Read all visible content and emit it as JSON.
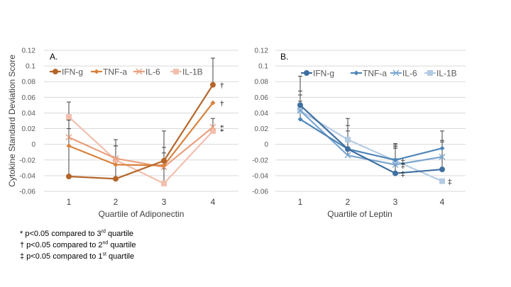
{
  "chart_data": [
    {
      "type": "line",
      "panel_label": "A.",
      "title": "",
      "xlabel": "Quartile of Adiponectin",
      "ylabel": "Cytokine Standard Deviation Score",
      "categories": [
        "1",
        "2",
        "3",
        "4"
      ],
      "ylim": [
        -0.06,
        0.12
      ],
      "yticks": [
        "0.12",
        "0.1",
        "0.08",
        "0.06",
        "0.04",
        "0.02",
        "0",
        "-0.02",
        "-0.04",
        "-0.06"
      ],
      "grid": true,
      "legend_position": "top",
      "series": [
        {
          "name": "IFN-g",
          "color": "#b5652a",
          "marker": "circle",
          "values": [
            -0.041,
            -0.044,
            -0.021,
            0.076
          ],
          "error_upper": [
            0.031,
            0.006,
            0.017,
            0.11
          ]
        },
        {
          "name": "TNF-a",
          "color": "#d9823e",
          "marker": "diamond",
          "values": [
            -0.002,
            -0.026,
            -0.027,
            0.053
          ],
          "error_upper": [
            0.02,
            -0.002,
            -0.004,
            null
          ]
        },
        {
          "name": "IL-6",
          "color": "#e9a07e",
          "marker": "x",
          "values": [
            0.009,
            -0.018,
            -0.029,
            0.022
          ],
          "error_upper": [
            0.031,
            -0.002,
            -0.011,
            0.033
          ]
        },
        {
          "name": "IL-1B",
          "color": "#f2bfae",
          "marker": "square",
          "values": [
            0.035,
            -0.02,
            -0.05,
            0.017
          ],
          "error_upper": [
            0.054,
            null,
            -0.031,
            null
          ]
        }
      ],
      "annotations": [
        {
          "category": "4",
          "series": "IFN-g",
          "symbol": "†"
        },
        {
          "category": "4",
          "series": "TNF-a",
          "symbol": "†"
        },
        {
          "category": "4",
          "series": "IL-6",
          "symbol": "*"
        },
        {
          "category": "4",
          "series": "IL-1B",
          "symbol": "*"
        }
      ]
    },
    {
      "type": "line",
      "panel_label": "B.",
      "title": "",
      "xlabel": "Quartile of Leptin",
      "ylabel": "",
      "categories": [
        "1",
        "2",
        "3",
        "4"
      ],
      "ylim": [
        -0.06,
        0.12
      ],
      "yticks": [
        "0.12",
        "0.1",
        "0.08",
        "0.06",
        "0.04",
        "0.02",
        "0",
        "-0.02",
        "-0.04",
        "-0.06"
      ],
      "grid": true,
      "legend_position": "top",
      "series": [
        {
          "name": "IFN-g",
          "color": "#3f6f9f",
          "marker": "circle",
          "values": [
            0.05,
            -0.006,
            -0.037,
            -0.032
          ],
          "error_upper": [
            0.087,
            0.033,
            0.001,
            0.017
          ]
        },
        {
          "name": "TNF-a",
          "color": "#4f86b8",
          "marker": "diamond",
          "values": [
            0.032,
            -0.006,
            -0.02,
            -0.005
          ],
          "error_upper": [
            0.068,
            0.024,
            -0.001,
            0.005
          ]
        },
        {
          "name": "IL-6",
          "color": "#7aa6cf",
          "marker": "x",
          "values": [
            0.043,
            -0.014,
            -0.026,
            -0.016
          ],
          "error_upper": [
            0.063,
            0.017,
            -0.003,
            0.003
          ]
        },
        {
          "name": "IL-1B",
          "color": "#b5cbe4",
          "marker": "square",
          "values": [
            0.043,
            0.006,
            -0.021,
            -0.047
          ],
          "error_upper": [
            0.055,
            null,
            -0.005,
            null
          ]
        }
      ],
      "annotations": [
        {
          "category": "3",
          "series": "IL-1B",
          "symbol": "‡"
        },
        {
          "category": "3",
          "series": "IL-6",
          "symbol": "‡"
        },
        {
          "category": "3",
          "series": "IFN-g",
          "symbol": "‡"
        },
        {
          "category": "4",
          "series": "IL-1B",
          "symbol": "‡"
        }
      ]
    }
  ],
  "footnotes": [
    {
      "symbol": "*",
      "text_before": " p<0.05 compared to 3",
      "sup": "rd",
      "text_after": " quartile"
    },
    {
      "symbol": "†",
      "text_before": " p<0.05 compared to 2",
      "sup": "nd",
      "text_after": " quartile"
    },
    {
      "symbol": "‡",
      "text_before": " p<0.05 compared to 1",
      "sup": "st",
      "text_after": " quartile"
    }
  ]
}
